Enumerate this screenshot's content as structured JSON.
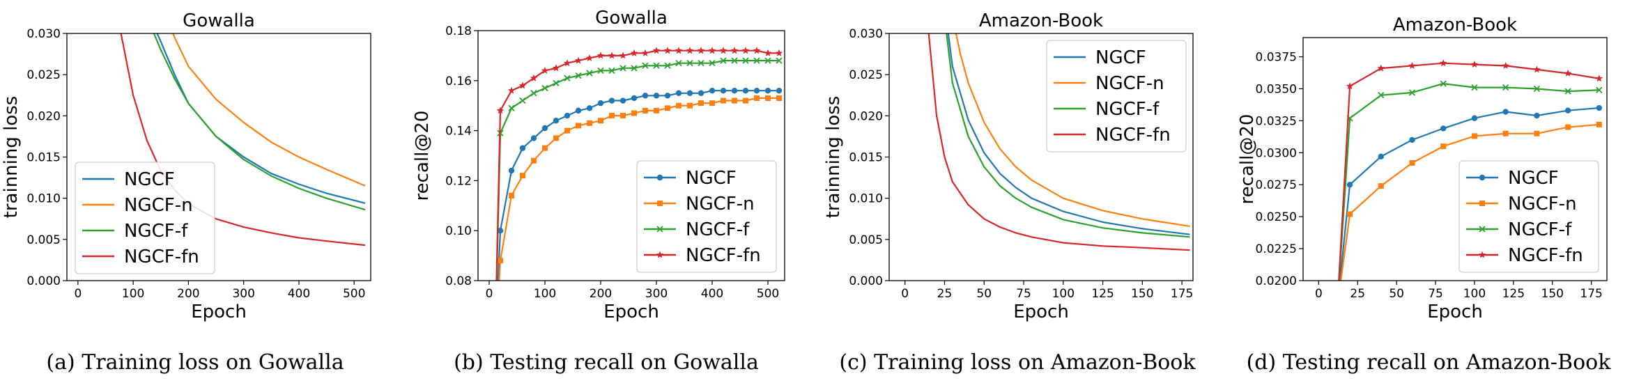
{
  "colors": {
    "NGCF": "#1f77b4",
    "NGCF-n": "#ff7f0e",
    "NGCF-f": "#2ca02c",
    "NGCF-fn": "#d62728"
  },
  "captions": [
    "(a)  Training loss on Gowalla",
    "(b)  Testing recall on Gowalla",
    "(c)  Training loss on Amazon-Book",
    "(d)  Testing recall on Amazon-Book"
  ],
  "chart_data": [
    {
      "type": "line",
      "title": "Gowalla",
      "xlabel": "Epoch",
      "ylabel": "trainning loss",
      "xlim": [
        -20,
        530
      ],
      "ylim": [
        0,
        0.03
      ],
      "xticks": [
        0,
        100,
        200,
        300,
        400,
        500
      ],
      "yticks": [
        "0.000",
        "0.005",
        "0.010",
        "0.015",
        "0.020",
        "0.025",
        "0.030"
      ],
      "grid": false,
      "legend": "lower-left",
      "markers": false,
      "series": [
        {
          "name": "NGCF",
          "x": [
            130,
            150,
            175,
            200,
            250,
            300,
            350,
            400,
            450,
            520
          ],
          "y": [
            0.032,
            0.029,
            0.025,
            0.0215,
            0.0175,
            0.015,
            0.013,
            0.0117,
            0.0106,
            0.0094
          ]
        },
        {
          "name": "NGCF-n",
          "x": [
            160,
            175,
            200,
            250,
            300,
            350,
            400,
            450,
            520
          ],
          "y": [
            0.032,
            0.0295,
            0.026,
            0.022,
            0.0192,
            0.0168,
            0.015,
            0.0135,
            0.0115
          ]
        },
        {
          "name": "NGCF-f",
          "x": [
            125,
            150,
            175,
            200,
            250,
            300,
            350,
            400,
            450,
            520
          ],
          "y": [
            0.032,
            0.028,
            0.0245,
            0.0215,
            0.0175,
            0.0147,
            0.0127,
            0.0112,
            0.01,
            0.0086
          ]
        },
        {
          "name": "NGCF-fn",
          "x": [
            75,
            100,
            125,
            150,
            175,
            200,
            250,
            300,
            350,
            400,
            450,
            520
          ],
          "y": [
            0.031,
            0.0225,
            0.017,
            0.0133,
            0.011,
            0.0093,
            0.0075,
            0.0065,
            0.0058,
            0.0052,
            0.0048,
            0.0043
          ]
        }
      ]
    },
    {
      "type": "line",
      "title": "Gowalla",
      "xlabel": "Epoch",
      "ylabel": "recall@20",
      "xlim": [
        -20,
        530
      ],
      "ylim": [
        0.08,
        0.18
      ],
      "xticks": [
        0,
        100,
        200,
        300,
        400,
        500
      ],
      "yticks": [
        "0.08",
        "0.10",
        "0.12",
        "0.14",
        "0.16",
        "0.18"
      ],
      "grid": false,
      "legend": "lower-right",
      "markers": true,
      "series": [
        {
          "name": "NGCF",
          "marker": "circle",
          "x": [
            10,
            20,
            40,
            60,
            80,
            100,
            120,
            140,
            160,
            180,
            200,
            220,
            240,
            260,
            280,
            300,
            320,
            340,
            360,
            380,
            400,
            420,
            440,
            460,
            480,
            500,
            520
          ],
          "y": [
            0.05,
            0.1,
            0.124,
            0.133,
            0.137,
            0.141,
            0.144,
            0.146,
            0.148,
            0.149,
            0.151,
            0.152,
            0.152,
            0.153,
            0.154,
            0.154,
            0.154,
            0.155,
            0.155,
            0.155,
            0.156,
            0.156,
            0.156,
            0.156,
            0.156,
            0.156,
            0.156
          ]
        },
        {
          "name": "NGCF-n",
          "marker": "square",
          "x": [
            10,
            20,
            40,
            60,
            80,
            100,
            120,
            140,
            160,
            180,
            200,
            220,
            240,
            260,
            280,
            300,
            320,
            340,
            360,
            380,
            400,
            420,
            440,
            460,
            480,
            500,
            520
          ],
          "y": [
            0.05,
            0.088,
            0.114,
            0.122,
            0.128,
            0.133,
            0.137,
            0.14,
            0.142,
            0.143,
            0.144,
            0.146,
            0.146,
            0.147,
            0.148,
            0.148,
            0.149,
            0.15,
            0.15,
            0.151,
            0.151,
            0.152,
            0.152,
            0.152,
            0.153,
            0.153,
            0.153
          ]
        },
        {
          "name": "NGCF-f",
          "marker": "x",
          "x": [
            10,
            20,
            40,
            60,
            80,
            100,
            120,
            140,
            160,
            180,
            200,
            220,
            240,
            260,
            280,
            300,
            320,
            340,
            360,
            380,
            400,
            420,
            440,
            460,
            480,
            500,
            520
          ],
          "y": [
            0.05,
            0.139,
            0.149,
            0.152,
            0.155,
            0.157,
            0.159,
            0.161,
            0.162,
            0.163,
            0.164,
            0.164,
            0.165,
            0.165,
            0.166,
            0.166,
            0.166,
            0.167,
            0.167,
            0.167,
            0.167,
            0.168,
            0.168,
            0.168,
            0.168,
            0.168,
            0.168
          ]
        },
        {
          "name": "NGCF-fn",
          "marker": "star",
          "x": [
            10,
            20,
            40,
            60,
            80,
            100,
            120,
            140,
            160,
            180,
            200,
            220,
            240,
            260,
            280,
            300,
            320,
            340,
            360,
            380,
            400,
            420,
            440,
            460,
            480,
            500,
            520
          ],
          "y": [
            0.05,
            0.148,
            0.156,
            0.158,
            0.161,
            0.164,
            0.165,
            0.167,
            0.168,
            0.169,
            0.17,
            0.17,
            0.17,
            0.171,
            0.171,
            0.172,
            0.172,
            0.172,
            0.172,
            0.172,
            0.172,
            0.172,
            0.172,
            0.172,
            0.172,
            0.171,
            0.171
          ]
        }
      ]
    },
    {
      "type": "line",
      "title": "Amazon-Book",
      "xlabel": "Epoch",
      "ylabel": "trainning loss",
      "xlim": [
        -10,
        182
      ],
      "ylim": [
        0,
        0.03
      ],
      "xticks": [
        0,
        25,
        50,
        75,
        100,
        125,
        150,
        175
      ],
      "yticks": [
        "0.000",
        "0.005",
        "0.010",
        "0.015",
        "0.020",
        "0.025",
        "0.030"
      ],
      "grid": false,
      "legend": "upper-right",
      "markers": false,
      "series": [
        {
          "name": "NGCF",
          "x": [
            26,
            30,
            40,
            50,
            60,
            70,
            80,
            100,
            125,
            150,
            180
          ],
          "y": [
            0.032,
            0.026,
            0.0195,
            0.0155,
            0.013,
            0.0113,
            0.01,
            0.0084,
            0.0071,
            0.0063,
            0.0056
          ]
        },
        {
          "name": "NGCF-n",
          "x": [
            30,
            35,
            40,
            50,
            60,
            70,
            80,
            100,
            125,
            150,
            180
          ],
          "y": [
            0.032,
            0.0275,
            0.024,
            0.0192,
            0.016,
            0.0138,
            0.0122,
            0.01,
            0.0085,
            0.0075,
            0.0066
          ]
        },
        {
          "name": "NGCF-f",
          "x": [
            25,
            30,
            40,
            50,
            60,
            70,
            80,
            100,
            125,
            150,
            180
          ],
          "y": [
            0.032,
            0.024,
            0.0175,
            0.0138,
            0.0115,
            0.01,
            0.0089,
            0.0074,
            0.0064,
            0.0058,
            0.0053
          ]
        },
        {
          "name": "NGCF-fn",
          "x": [
            14,
            20,
            25,
            30,
            40,
            50,
            60,
            70,
            80,
            100,
            125,
            150,
            180
          ],
          "y": [
            0.032,
            0.02,
            0.015,
            0.012,
            0.0092,
            0.0075,
            0.0065,
            0.0058,
            0.0053,
            0.0046,
            0.0042,
            0.004,
            0.0037
          ]
        }
      ]
    },
    {
      "type": "line",
      "title": "Amazon-Book",
      "xlabel": "Epoch",
      "ylabel": "recall@20",
      "xlim": [
        -10,
        185
      ],
      "ylim": [
        0.02,
        0.039
      ],
      "xticks": [
        0,
        25,
        50,
        75,
        100,
        125,
        150,
        175
      ],
      "yticks": [
        "0.0200",
        "0.0225",
        "0.0250",
        "0.0275",
        "0.0300",
        "0.0325",
        "0.0350",
        "0.0375"
      ],
      "grid": false,
      "legend": "lower-right",
      "markers": true,
      "series": [
        {
          "name": "NGCF",
          "marker": "circle",
          "x": [
            12,
            20,
            40,
            60,
            80,
            100,
            120,
            140,
            160,
            180
          ],
          "y": [
            0.018,
            0.0275,
            0.0297,
            0.031,
            0.0319,
            0.0327,
            0.0332,
            0.0329,
            0.0333,
            0.0335
          ]
        },
        {
          "name": "NGCF-n",
          "marker": "square",
          "x": [
            12,
            20,
            40,
            60,
            80,
            100,
            120,
            140,
            160,
            180
          ],
          "y": [
            0.018,
            0.0252,
            0.0274,
            0.0292,
            0.0305,
            0.0313,
            0.0315,
            0.0315,
            0.032,
            0.0322
          ]
        },
        {
          "name": "NGCF-f",
          "marker": "x",
          "x": [
            12,
            20,
            40,
            60,
            80,
            100,
            120,
            140,
            160,
            180
          ],
          "y": [
            0.018,
            0.0327,
            0.0345,
            0.0347,
            0.0354,
            0.0351,
            0.0351,
            0.035,
            0.0348,
            0.0349
          ]
        },
        {
          "name": "NGCF-fn",
          "marker": "star",
          "x": [
            12,
            20,
            40,
            60,
            80,
            100,
            120,
            140,
            160,
            180
          ],
          "y": [
            0.018,
            0.0352,
            0.0366,
            0.0368,
            0.037,
            0.0369,
            0.0368,
            0.0365,
            0.0362,
            0.0358
          ]
        }
      ]
    }
  ]
}
